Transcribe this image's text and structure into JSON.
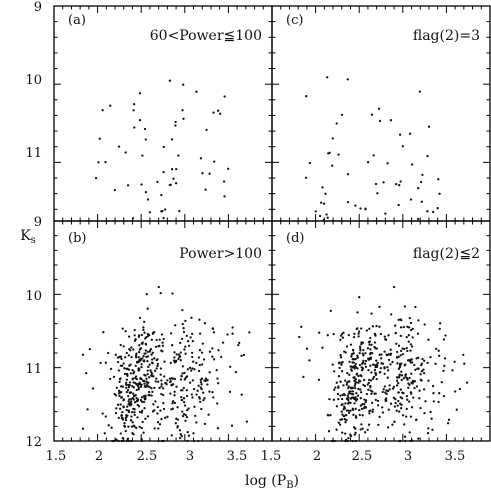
{
  "chart_data": {
    "type": "scatter",
    "xlabel": "log (P",
    "xlabel_sub": "B",
    "xlabel_close": ")",
    "ylabel": "K",
    "ylabel_sub": "s",
    "xlim": [
      1.5,
      4.0
    ],
    "ylim_top": [
      9,
      11.75
    ],
    "ylim_bottom": [
      9,
      12
    ],
    "x_ticks_major": [
      "1.5",
      "2",
      "2.5",
      "3",
      "3.5"
    ],
    "y_ticks_top": [
      "9",
      "10",
      "11"
    ],
    "y_ticks_bottom": [
      "9",
      "10",
      "11",
      "12"
    ],
    "y_axis_inverted": true,
    "grid": false,
    "panels": [
      {
        "id": "a",
        "tag": "(a)",
        "title": "60<Power≦100",
        "position": "top-left",
        "n_points": 60
      },
      {
        "id": "c",
        "tag": "(c)",
        "title": "flag(2)=3",
        "position": "top-right",
        "n_points": 60
      },
      {
        "id": "b",
        "tag": "(b)",
        "title": "Power>100",
        "position": "bottom-left",
        "n_points": 560
      },
      {
        "id": "d",
        "tag": "(d)",
        "title": "flag(2)≦2",
        "position": "bottom-right",
        "n_points": 560
      }
    ],
    "distribution": {
      "sparse_panels_x_range": [
        1.85,
        3.5
      ],
      "sparse_panels_y_range": [
        9.9,
        11.75
      ],
      "dense_panels_x_range": [
        1.8,
        3.75
      ],
      "dense_panels_y_range": [
        9.9,
        12.0
      ],
      "dense_clusters": [
        {
          "x_center": 2.45,
          "y_center": 11.2
        },
        {
          "x_center": 3.0,
          "y_center": 11.1
        }
      ]
    }
  }
}
